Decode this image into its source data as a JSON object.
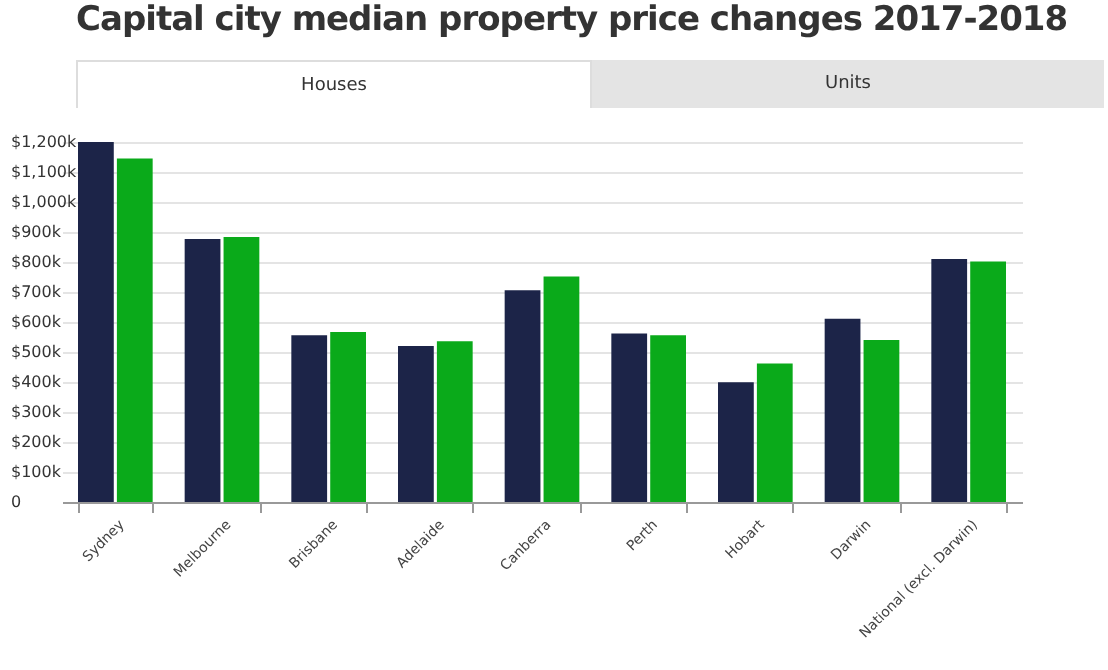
{
  "chart_data": {
    "type": "bar",
    "title": "Capital city median property price changes 2017-2018",
    "annotations": [
      "Houses",
      "Units"
    ],
    "categories": [
      "Sydney",
      "Melbourne",
      "Brisbane",
      "Adelaide",
      "Canberra",
      "Perth",
      "Hobart",
      "Darwin",
      "National (excl. Darwin)"
    ],
    "series": [
      {
        "color": "#1c2448",
        "values": [
          1200,
          877,
          556,
          520,
          706,
          562,
          399,
          611,
          810
        ]
      },
      {
        "color": "#0aaa1a",
        "values": [
          1145,
          883,
          567,
          536,
          752,
          556,
          462,
          540,
          802
        ]
      }
    ],
    "ylim": [
      0,
      1200
    ],
    "yticks": [
      {
        "value": 0,
        "label": "0"
      },
      {
        "value": 100,
        "label": "$100k"
      },
      {
        "value": 200,
        "label": "$200k"
      },
      {
        "value": 300,
        "label": "$300k"
      },
      {
        "value": 400,
        "label": "$400k"
      },
      {
        "value": 500,
        "label": "$500k"
      },
      {
        "value": 600,
        "label": "$600k"
      },
      {
        "value": 700,
        "label": "$700k"
      },
      {
        "value": 800,
        "label": "$800k"
      },
      {
        "value": 900,
        "label": "$900k"
      },
      {
        "value": 1000,
        "label": "$1,000k"
      },
      {
        "value": 1100,
        "label": "$1,100k"
      },
      {
        "value": 1200,
        "label": "$1,200k"
      }
    ],
    "grid": "y"
  }
}
